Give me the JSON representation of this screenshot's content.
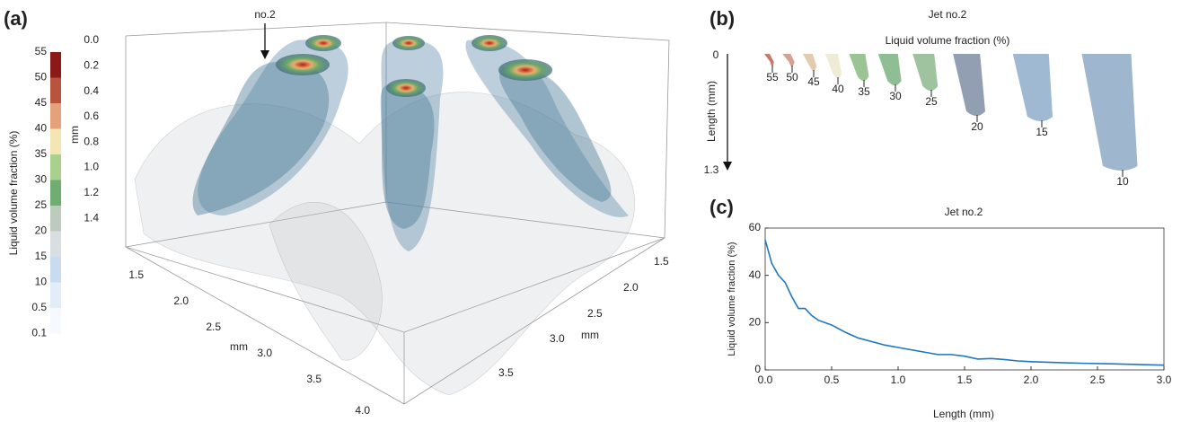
{
  "panel_a": {
    "label": "(a)",
    "annotation": "no.2",
    "colorbar": {
      "title": "Liquid volume fraction (%)",
      "ticks": [
        55,
        50,
        45,
        40,
        35,
        30,
        25,
        20,
        15,
        10,
        0.5,
        0.1
      ],
      "colors": [
        "#8b1a17",
        "#b8533e",
        "#e4a27a",
        "#f3e6b4",
        "#a9d08c",
        "#6fae70",
        "#bccbbd",
        "#d9dee2",
        "#c9dcef",
        "#e2edf8",
        "#f6f9fd"
      ]
    },
    "z_axis": {
      "label": "mm",
      "ticks": [
        "0.0",
        "0.2",
        "0.4",
        "0.6",
        "0.8",
        "1.0",
        "1.2",
        "1.4"
      ]
    },
    "x_axis": {
      "label": "mm",
      "ticks": [
        "1.5",
        "2.0",
        "2.5",
        "3.0",
        "3.5",
        "4.0"
      ]
    },
    "y_axis": {
      "label": "mm",
      "ticks": [
        "1.5",
        "2.0",
        "2.5",
        "3.0",
        "3.5"
      ]
    }
  },
  "panel_b": {
    "label": "(b)",
    "title": "Jet no.2",
    "subtitle": "Liquid volume fraction (%)",
    "y_label": "Length (mm)",
    "y_start": "0",
    "y_end": "1.3",
    "isosurfaces": [
      55,
      50,
      45,
      40,
      35,
      30,
      25,
      20,
      15,
      10
    ]
  },
  "chart_data": {
    "type": "line",
    "label": "(c)",
    "title": "Jet no.2",
    "x_label": "Length (mm)",
    "y_label": "Liquid volume fraction (%)",
    "x": [
      0,
      0.05,
      0.1,
      0.15,
      0.2,
      0.25,
      0.3,
      0.35,
      0.4,
      0.5,
      0.6,
      0.7,
      0.8,
      0.9,
      1.0,
      1.1,
      1.2,
      1.3,
      1.4,
      1.5,
      1.6,
      1.7,
      1.8,
      1.9,
      2.0,
      2.2,
      2.4,
      2.6,
      2.8,
      3.0
    ],
    "series": [
      {
        "name": "Jet no.2",
        "color": "#1f77c0",
        "values": [
          55,
          45,
          40,
          37,
          31,
          26,
          26,
          23,
          21,
          19,
          16,
          13.5,
          12,
          10.5,
          9.5,
          8.5,
          7.5,
          6.5,
          6.5,
          5.8,
          4.6,
          4.8,
          4.4,
          3.8,
          3.5,
          3.1,
          2.8,
          2.6,
          2.3,
          2
        ]
      }
    ],
    "xlim": [
      0,
      3
    ],
    "ylim": [
      0,
      60
    ],
    "xticks": [
      {
        "value": 0,
        "label": "0.0"
      },
      {
        "value": 0.5,
        "label": "0.5"
      },
      {
        "value": 1,
        "label": "1.0"
      },
      {
        "value": 1.5,
        "label": "1.5"
      },
      {
        "value": 2,
        "label": "2.0"
      },
      {
        "value": 2.5,
        "label": "2.5"
      },
      {
        "value": 3,
        "label": "3.0"
      }
    ],
    "yticks": [
      0,
      20,
      40,
      60
    ]
  }
}
